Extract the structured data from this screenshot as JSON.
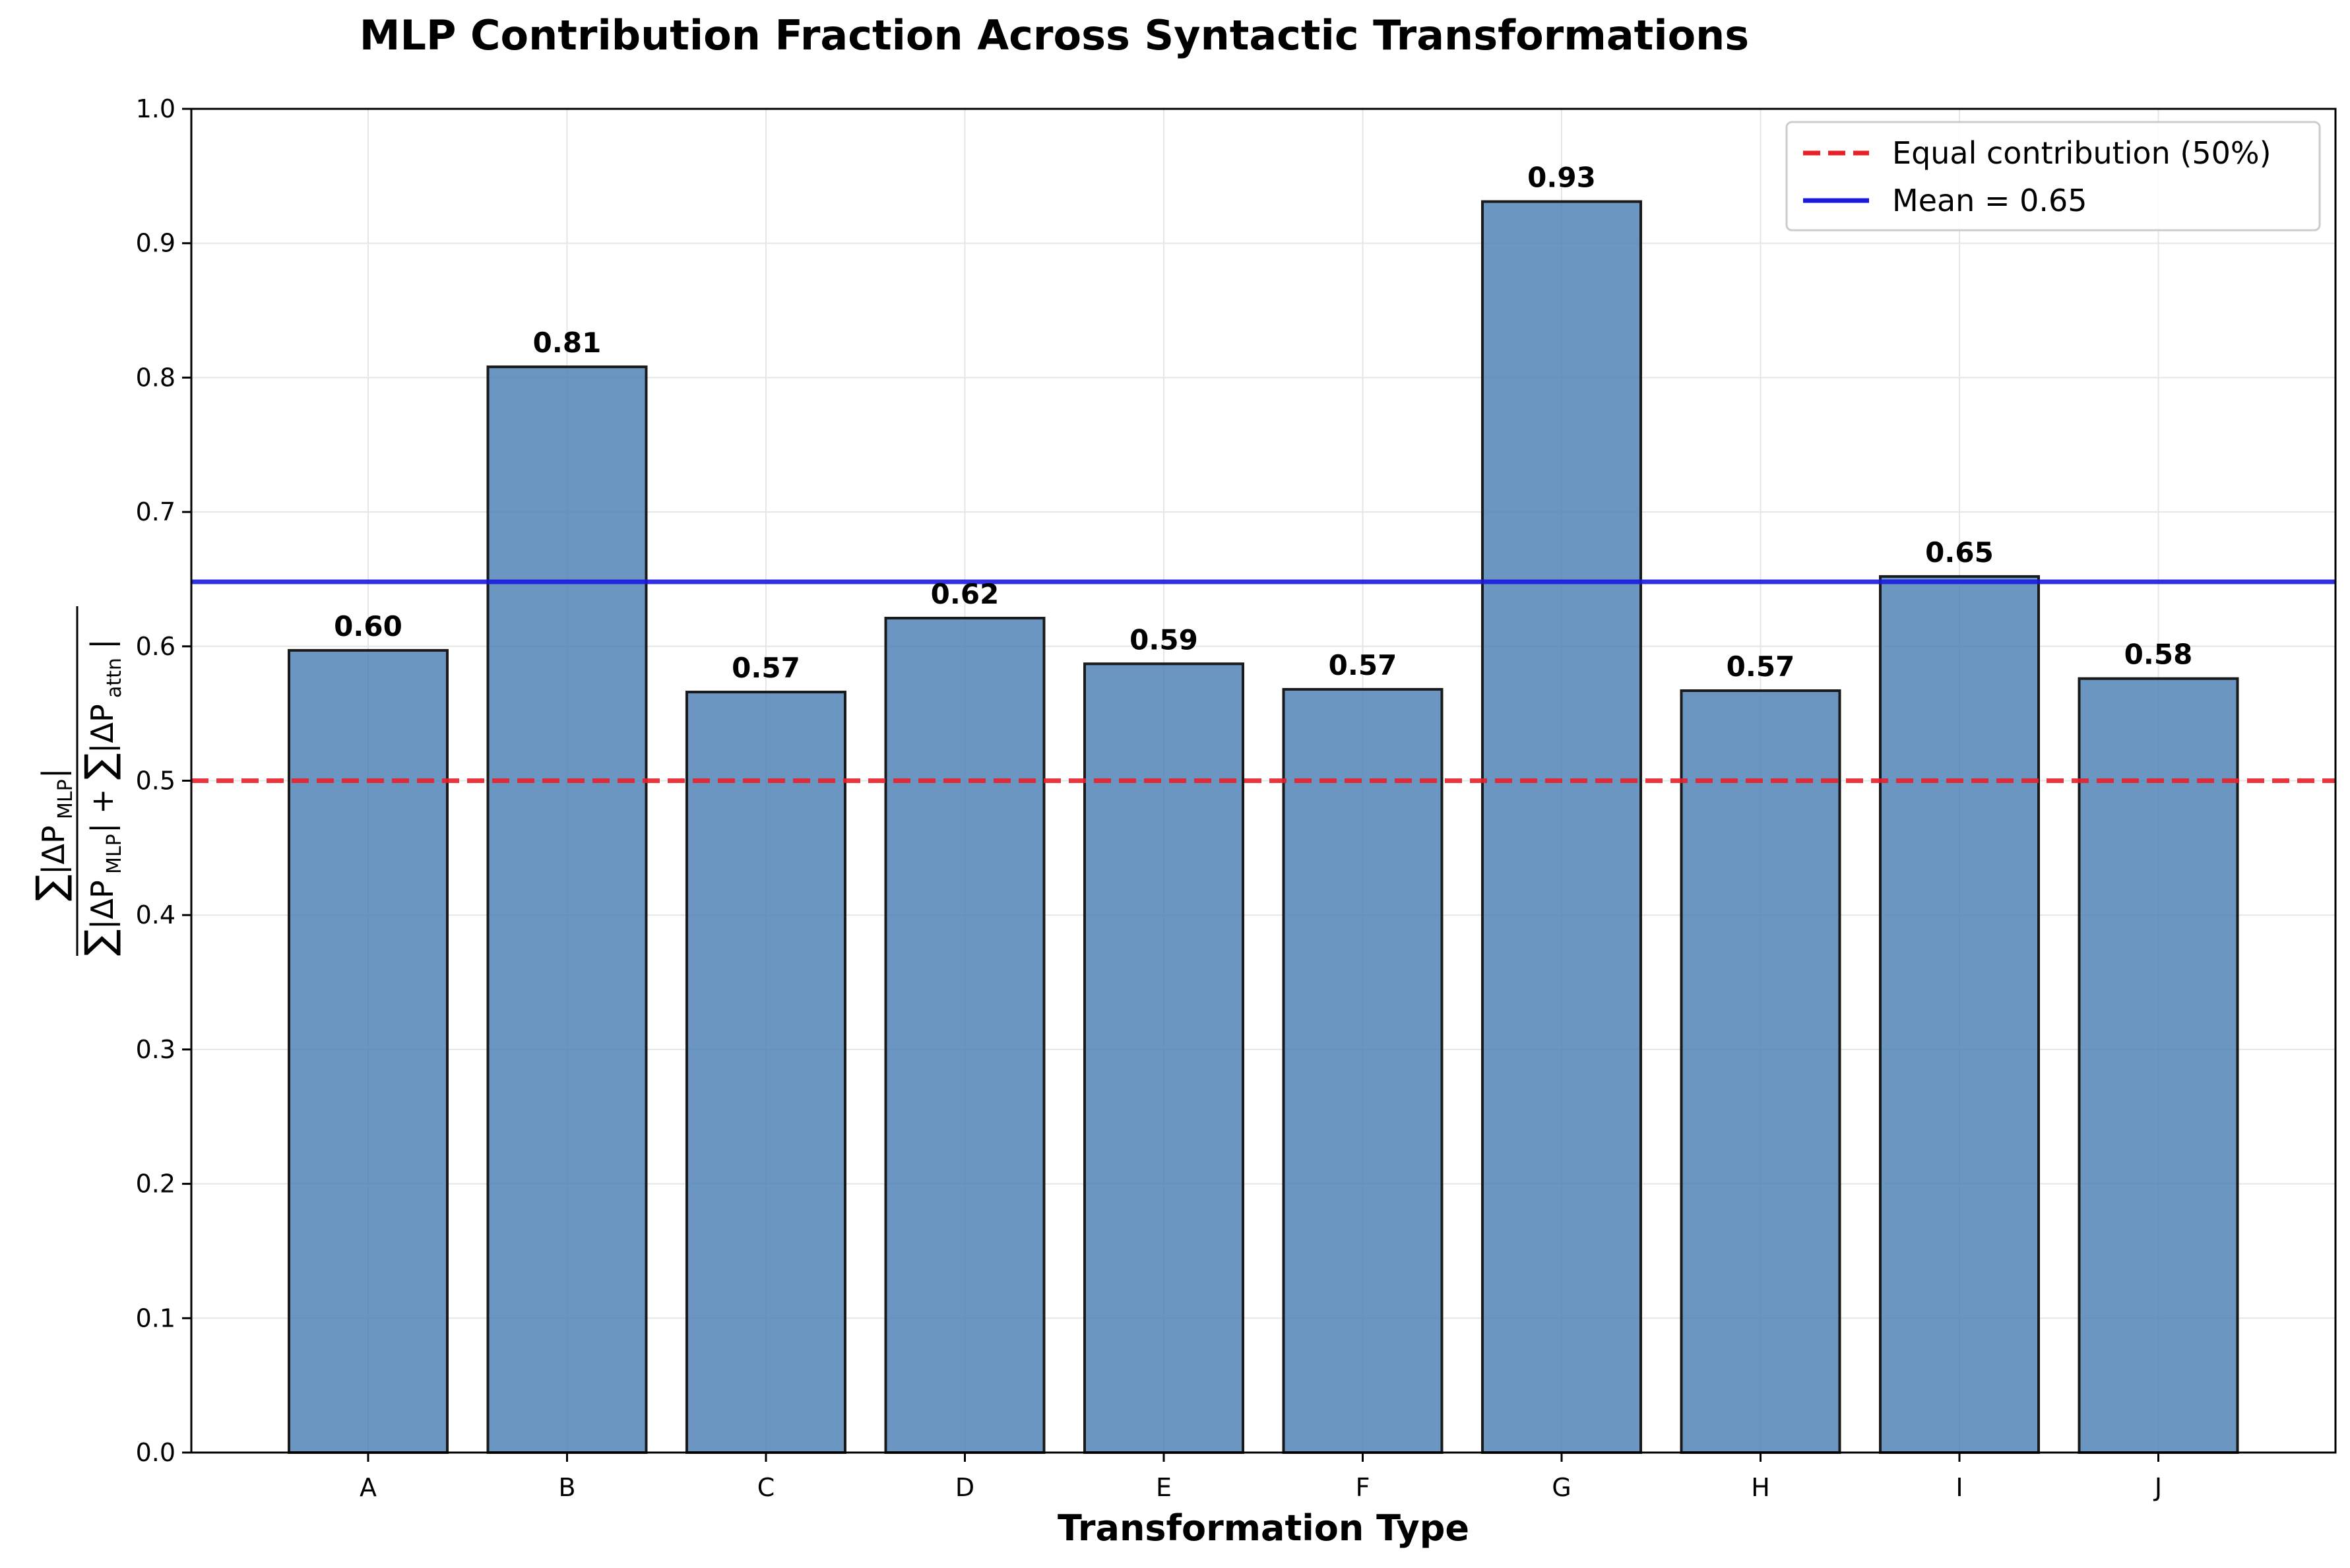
{
  "chart_data": {
    "type": "bar",
    "title": "MLP Contribution Fraction Across Syntactic Transformations",
    "xlabel": "Transformation Type",
    "ylabel": {
      "numerator": "∑|ΔP_MLP|",
      "denominator": "∑|ΔP_MLP| + ∑|ΔP_attn|",
      "sum": "∑",
      "delta_p": "|ΔP",
      "delta_p_end": "|",
      "plus": "+",
      "mlp_sub": "MLP",
      "attn_sub": "attn"
    },
    "categories": [
      "A",
      "B",
      "C",
      "D",
      "E",
      "F",
      "G",
      "H",
      "I",
      "J"
    ],
    "values": [
      0.597,
      0.808,
      0.566,
      0.621,
      0.587,
      0.568,
      0.931,
      0.567,
      0.652,
      0.576
    ],
    "value_labels": [
      "0.60",
      "0.81",
      "0.57",
      "0.62",
      "0.59",
      "0.57",
      "0.93",
      "0.57",
      "0.65",
      "0.58"
    ],
    "ylim": [
      0.0,
      1.0
    ],
    "yticks": [
      "0.0",
      "0.1",
      "0.2",
      "0.3",
      "0.4",
      "0.5",
      "0.6",
      "0.7",
      "0.8",
      "0.9",
      "1.0"
    ],
    "grid": true,
    "bar_color": "#4a7fb5",
    "bar_edge_color": "#1a1a1a",
    "reference_lines": [
      {
        "name": "equal",
        "label": "Equal contribution (50%)",
        "value": 0.5,
        "color": "#e8202a",
        "style": "dashed"
      },
      {
        "name": "mean",
        "label": "Mean = 0.65",
        "value": 0.648,
        "color": "#1a1adf",
        "style": "solid"
      }
    ],
    "legend_position": "top-right"
  }
}
